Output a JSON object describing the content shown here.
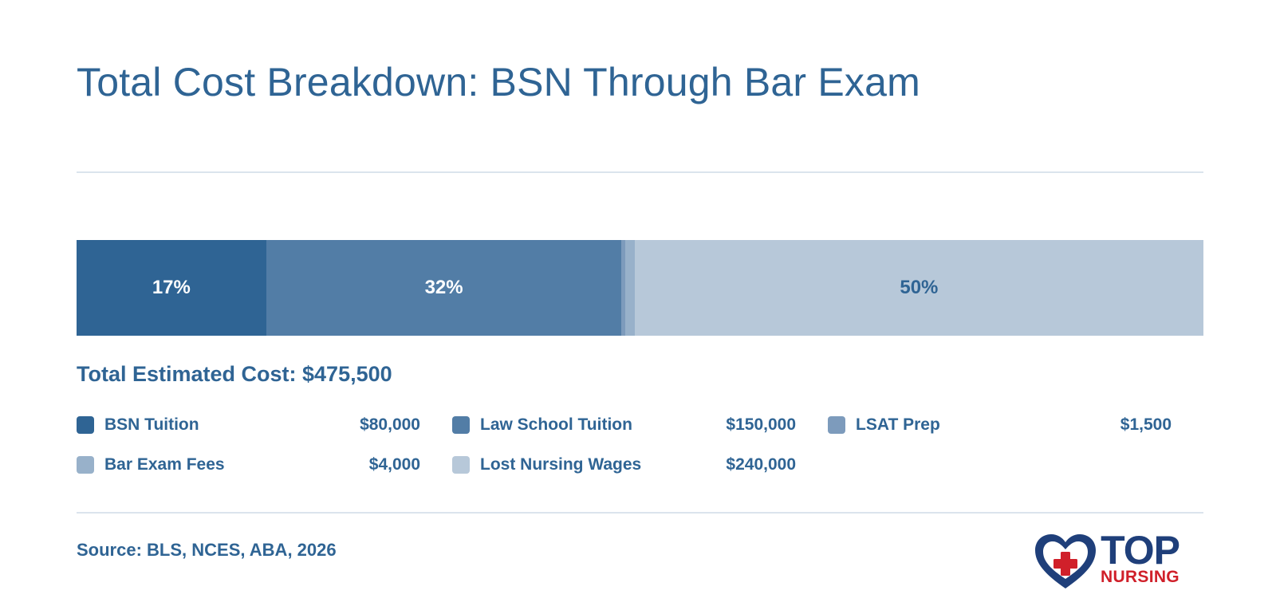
{
  "title": "Total Cost Breakdown: BSN Through Bar Exam",
  "total_label": "Total Estimated Cost: $475,500",
  "source": "Source: BLS, NCES, ABA, 2026",
  "logo": {
    "top_text": "TOP",
    "bottom_text": "NURSING",
    "icon": "heart-cross-icon"
  },
  "colors": {
    "title": "#2f6494",
    "rule": "#dbe4ed",
    "logo_navy": "#1f3f7a",
    "logo_red": "#d0202a"
  },
  "chart_data": {
    "type": "bar",
    "orientation": "horizontal-stacked-100",
    "categories": [
      "BSN Tuition",
      "Law School Tuition",
      "LSAT Prep",
      "Bar Exam Fees",
      "Lost Nursing Wages"
    ],
    "values": [
      80000,
      150000,
      1500,
      4000,
      240000
    ],
    "formatted_values": [
      "$80,000",
      "$150,000",
      "$1,500",
      "$4,000",
      "$240,000"
    ],
    "segment_labels": [
      "17%",
      "32%",
      "",
      "",
      "50%"
    ],
    "colors": [
      "#2f6494",
      "#527da6",
      "#7d9bbc",
      "#98b1ca",
      "#b7c8d9"
    ],
    "label_colors": [
      "#ffffff",
      "#ffffff",
      "#ffffff",
      "#ffffff",
      "#2f6494"
    ],
    "total": 475500,
    "legend_position": "bottom"
  }
}
